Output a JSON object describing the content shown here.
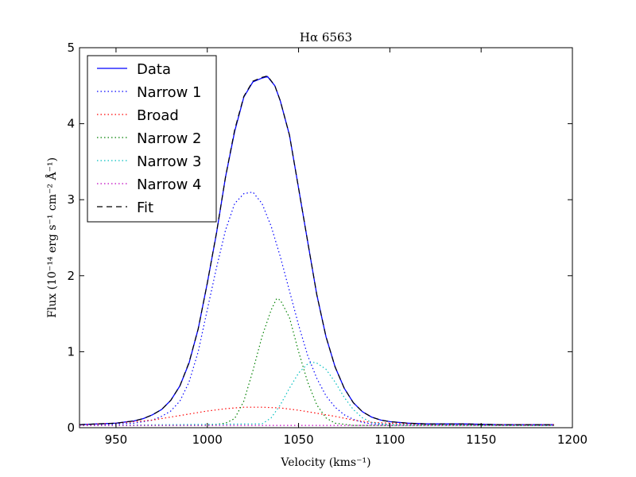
{
  "chart_data": {
    "type": "line",
    "title": "Hα 6563",
    "xlabel": "Velocity (kms⁻¹)",
    "ylabel": "Flux (10⁻¹⁴ erg s⁻¹ cm⁻² Å⁻¹)",
    "xlim": [
      930,
      1200
    ],
    "ylim": [
      0,
      5
    ],
    "xticks": [
      950,
      1000,
      1050,
      1100,
      1150,
      1200
    ],
    "yticks": [
      0,
      1,
      2,
      3,
      4,
      5
    ],
    "grid": false,
    "legend_position": "top-left",
    "series": [
      {
        "name": "Data",
        "color": "#0000ff",
        "style": "solid",
        "x": [
          930,
          940,
          950,
          960,
          965,
          970,
          975,
          980,
          985,
          990,
          995,
          1000,
          1005,
          1010,
          1015,
          1020,
          1025,
          1030,
          1033,
          1037,
          1040,
          1045,
          1050,
          1055,
          1060,
          1065,
          1070,
          1075,
          1080,
          1085,
          1090,
          1095,
          1100,
          1110,
          1120,
          1140,
          1160,
          1180,
          1190
        ],
        "y": [
          0.04,
          0.05,
          0.06,
          0.09,
          0.12,
          0.17,
          0.24,
          0.36,
          0.55,
          0.85,
          1.3,
          1.9,
          2.55,
          3.3,
          3.9,
          4.35,
          4.55,
          4.6,
          4.62,
          4.5,
          4.3,
          3.85,
          3.15,
          2.45,
          1.75,
          1.2,
          0.8,
          0.52,
          0.33,
          0.21,
          0.14,
          0.1,
          0.08,
          0.06,
          0.05,
          0.05,
          0.04,
          0.04,
          0.04
        ]
      },
      {
        "name": "Narrow 1",
        "color": "#0000ff",
        "style": "dotted",
        "x": [
          930,
          940,
          950,
          960,
          965,
          970,
          975,
          980,
          985,
          990,
          995,
          1000,
          1005,
          1010,
          1015,
          1020,
          1025,
          1030,
          1035,
          1040,
          1045,
          1050,
          1055,
          1060,
          1065,
          1070,
          1075,
          1080,
          1085,
          1090,
          1100,
          1120,
          1140,
          1190
        ],
        "y": [
          0.04,
          0.04,
          0.05,
          0.06,
          0.08,
          0.1,
          0.15,
          0.22,
          0.35,
          0.6,
          1.0,
          1.55,
          2.1,
          2.6,
          2.95,
          3.08,
          3.1,
          2.95,
          2.65,
          2.25,
          1.8,
          1.35,
          0.95,
          0.65,
          0.42,
          0.27,
          0.17,
          0.11,
          0.07,
          0.05,
          0.04,
          0.04,
          0.04,
          0.04
        ]
      },
      {
        "name": "Broad",
        "color": "#ff0000",
        "style": "dotted",
        "x": [
          930,
          950,
          970,
          980,
          990,
          1000,
          1010,
          1020,
          1030,
          1040,
          1050,
          1060,
          1070,
          1080,
          1090,
          1100,
          1120,
          1150,
          1190
        ],
        "y": [
          0.04,
          0.06,
          0.1,
          0.14,
          0.18,
          0.22,
          0.25,
          0.27,
          0.27,
          0.26,
          0.23,
          0.19,
          0.15,
          0.1,
          0.07,
          0.06,
          0.04,
          0.04,
          0.04
        ]
      },
      {
        "name": "Narrow 2",
        "color": "#008000",
        "style": "dotted",
        "x": [
          930,
          1000,
          1010,
          1015,
          1020,
          1025,
          1030,
          1035,
          1038,
          1040,
          1045,
          1050,
          1055,
          1060,
          1065,
          1070,
          1080,
          1190
        ],
        "y": [
          0.03,
          0.03,
          0.06,
          0.12,
          0.35,
          0.75,
          1.2,
          1.55,
          1.7,
          1.68,
          1.45,
          1.0,
          0.6,
          0.3,
          0.13,
          0.06,
          0.03,
          0.03
        ]
      },
      {
        "name": "Narrow 3",
        "color": "#00bfbf",
        "style": "dotted",
        "x": [
          930,
          1030,
          1035,
          1040,
          1045,
          1050,
          1055,
          1058,
          1060,
          1065,
          1070,
          1075,
          1080,
          1085,
          1090,
          1100,
          1190
        ],
        "y": [
          0.03,
          0.05,
          0.13,
          0.3,
          0.52,
          0.72,
          0.84,
          0.86,
          0.85,
          0.77,
          0.6,
          0.4,
          0.24,
          0.13,
          0.07,
          0.04,
          0.03
        ]
      },
      {
        "name": "Narrow 4",
        "color": "#bf00bf",
        "style": "dotted",
        "x": [
          930,
          1190
        ],
        "y": [
          0.03,
          0.03
        ]
      },
      {
        "name": "Fit",
        "color": "#000000",
        "style": "dashed",
        "x": [
          930,
          940,
          950,
          960,
          965,
          970,
          975,
          980,
          985,
          990,
          995,
          1000,
          1005,
          1010,
          1015,
          1020,
          1025,
          1030,
          1033,
          1037,
          1040,
          1045,
          1050,
          1055,
          1060,
          1065,
          1070,
          1075,
          1080,
          1085,
          1090,
          1095,
          1100,
          1110,
          1120,
          1140,
          1160,
          1180,
          1190
        ],
        "y": [
          0.04,
          0.05,
          0.06,
          0.09,
          0.12,
          0.17,
          0.24,
          0.36,
          0.55,
          0.86,
          1.3,
          1.9,
          2.56,
          3.3,
          3.92,
          4.36,
          4.56,
          4.61,
          4.63,
          4.5,
          4.3,
          3.85,
          3.15,
          2.45,
          1.75,
          1.2,
          0.8,
          0.52,
          0.33,
          0.21,
          0.14,
          0.1,
          0.08,
          0.06,
          0.05,
          0.05,
          0.04,
          0.04,
          0.04
        ]
      }
    ]
  }
}
